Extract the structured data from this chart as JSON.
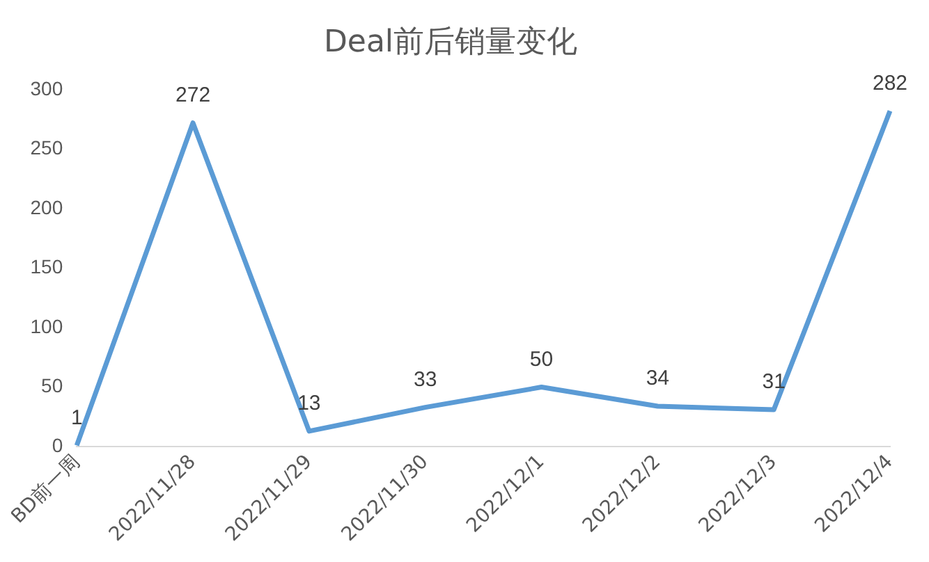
{
  "chart_data": {
    "type": "line",
    "title": "Deal前后销量变化",
    "categories": [
      "BD前一周",
      "2022/11/28",
      "2022/11/29",
      "2022/11/30",
      "2022/12/1",
      "2022/12/2",
      "2022/12/3",
      "2022/12/4"
    ],
    "series": [
      {
        "color": "#5b9bd5",
        "values": [
          1,
          272,
          13,
          33,
          50,
          34,
          31,
          282
        ]
      }
    ],
    "ylim": [
      0,
      300
    ],
    "yticks": [
      0,
      50,
      100,
      150,
      200,
      250,
      300
    ],
    "grid": false,
    "legend": false,
    "marker": "none",
    "line_style": "solid",
    "data_labels": true
  }
}
